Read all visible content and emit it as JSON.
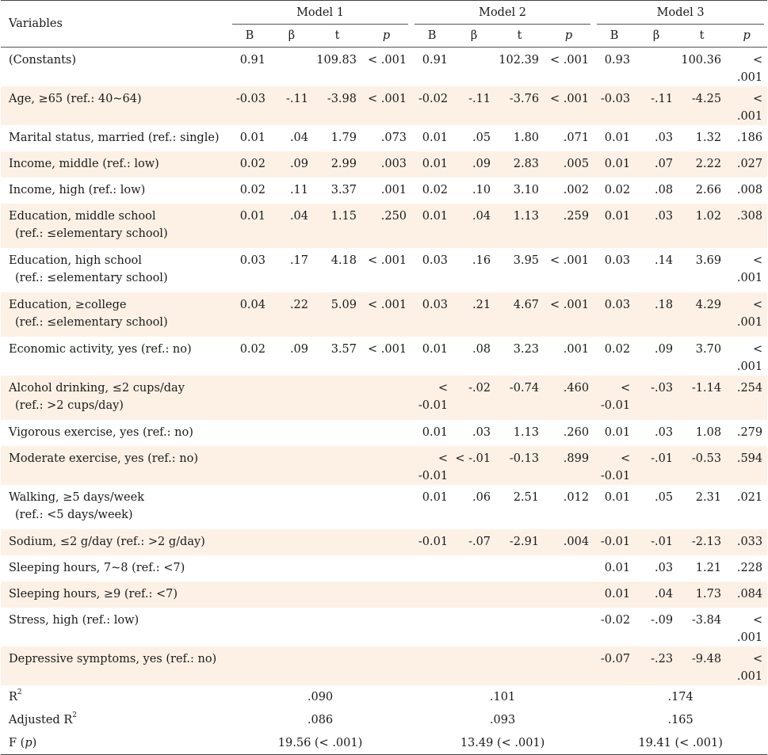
{
  "header": {
    "variables": "Variables",
    "models": [
      "Model 1",
      "Model 2",
      "Model 3"
    ],
    "subcols": [
      "B",
      "β",
      "t",
      "p"
    ]
  },
  "rows": [
    {
      "label": [
        "(Constants)"
      ],
      "shade": false,
      "m1": [
        "0.91",
        "",
        "109.83",
        "< .001"
      ],
      "m2": [
        "0.91",
        "",
        "102.39",
        "< .001"
      ],
      "m3": [
        "0.93",
        "",
        "100.36",
        "< .001"
      ]
    },
    {
      "label": [
        "Age, ≥65 (ref.: 40~64)"
      ],
      "shade": true,
      "m1": [
        "-0.03",
        "-.11",
        "-3.98",
        "< .001"
      ],
      "m2": [
        "-0.02",
        "-.11",
        "-3.76",
        "< .001"
      ],
      "m3": [
        "-0.03",
        "-.11",
        "-4.25",
        "< .001"
      ]
    },
    {
      "label": [
        "Marital status, married (ref.: single)"
      ],
      "shade": false,
      "m1": [
        "0.01",
        ".04",
        "1.79",
        ".073"
      ],
      "m2": [
        "0.01",
        ".05",
        "1.80",
        ".071"
      ],
      "m3": [
        "0.01",
        ".03",
        "1.32",
        ".186"
      ]
    },
    {
      "label": [
        "Income, middle (ref.: low)"
      ],
      "shade": true,
      "m1": [
        "0.02",
        ".09",
        "2.99",
        ".003"
      ],
      "m2": [
        "0.01",
        ".09",
        "2.83",
        ".005"
      ],
      "m3": [
        "0.01",
        ".07",
        "2.22",
        ".027"
      ]
    },
    {
      "label": [
        "Income, high (ref.: low)"
      ],
      "shade": false,
      "m1": [
        "0.02",
        ".11",
        "3.37",
        ".001"
      ],
      "m2": [
        "0.02",
        ".10",
        "3.10",
        ".002"
      ],
      "m3": [
        "0.02",
        ".08",
        "2.66",
        ".008"
      ]
    },
    {
      "label": [
        "Education, middle school",
        "(ref.: ≤elementary school)"
      ],
      "shade": true,
      "m1": [
        "0.01",
        ".04",
        "1.15",
        ".250"
      ],
      "m2": [
        "0.01",
        ".04",
        "1.13",
        ".259"
      ],
      "m3": [
        "0.01",
        ".03",
        "1.02",
        ".308"
      ]
    },
    {
      "label": [
        "Education, high school",
        "(ref.: ≤elementary school)"
      ],
      "shade": false,
      "m1": [
        "0.03",
        ".17",
        "4.18",
        "< .001"
      ],
      "m2": [
        "0.03",
        ".16",
        "3.95",
        "< .001"
      ],
      "m3": [
        "0.03",
        ".14",
        "3.69",
        "< .001"
      ]
    },
    {
      "label": [
        "Education, ≥college",
        "(ref.: ≤elementary school)"
      ],
      "shade": true,
      "m1": [
        "0.04",
        ".22",
        "5.09",
        "< .001"
      ],
      "m2": [
        "0.03",
        ".21",
        "4.67",
        "< .001"
      ],
      "m3": [
        "0.03",
        ".18",
        "4.29",
        "< .001"
      ]
    },
    {
      "label": [
        "Economic activity, yes (ref.: no)"
      ],
      "shade": false,
      "m1": [
        "0.02",
        ".09",
        "3.57",
        "< .001"
      ],
      "m2": [
        "0.01",
        ".08",
        "3.23",
        ".001"
      ],
      "m3": [
        "0.02",
        ".09",
        "3.70",
        "< .001"
      ]
    },
    {
      "label": [
        "Alcohol drinking, ≤2 cups/day",
        "(ref.: >2 cups/day)"
      ],
      "shade": true,
      "m1": [
        "",
        "",
        "",
        ""
      ],
      "m2": [
        "< -0.01",
        "-.02",
        "-0.74",
        ".460"
      ],
      "m3": [
        "< -0.01",
        "-.03",
        "-1.14",
        ".254"
      ]
    },
    {
      "label": [
        "Vigorous exercise, yes (ref.: no)"
      ],
      "shade": false,
      "m1": [
        "",
        "",
        "",
        ""
      ],
      "m2": [
        "0.01",
        ".03",
        "1.13",
        ".260"
      ],
      "m3": [
        "0.01",
        ".03",
        "1.08",
        ".279"
      ]
    },
    {
      "label": [
        "Moderate exercise, yes (ref.: no)"
      ],
      "shade": true,
      "m1": [
        "",
        "",
        "",
        ""
      ],
      "m2": [
        "< -0.01",
        "< -.01",
        "-0.13",
        ".899"
      ],
      "m3": [
        "< -0.01",
        "-.01",
        "-0.53",
        ".594"
      ]
    },
    {
      "label": [
        "Walking, ≥5 days/week",
        "(ref.: <5 days/week)"
      ],
      "shade": false,
      "m1": [
        "",
        "",
        "",
        ""
      ],
      "m2": [
        "0.01",
        ".06",
        "2.51",
        ".012"
      ],
      "m3": [
        "0.01",
        ".05",
        "2.31",
        ".021"
      ]
    },
    {
      "label": [
        "Sodium, ≤2 g/day (ref.: >2 g/day)"
      ],
      "shade": true,
      "m1": [
        "",
        "",
        "",
        ""
      ],
      "m2": [
        "-0.01",
        "-.07",
        "-2.91",
        ".004"
      ],
      "m3": [
        "-0.01",
        "-.01",
        "-2.13",
        ".033"
      ]
    },
    {
      "label": [
        "Sleeping hours, 7~8 (ref.: <7)"
      ],
      "shade": false,
      "m1": [
        "",
        "",
        "",
        ""
      ],
      "m2": [
        "",
        "",
        "",
        ""
      ],
      "m3": [
        "0.01",
        ".03",
        "1.21",
        ".228"
      ]
    },
    {
      "label": [
        "Sleeping hours, ≥9 (ref.: <7)"
      ],
      "shade": true,
      "m1": [
        "",
        "",
        "",
        ""
      ],
      "m2": [
        "",
        "",
        "",
        ""
      ],
      "m3": [
        "0.01",
        ".04",
        "1.73",
        ".084"
      ]
    },
    {
      "label": [
        "Stress, high (ref.: low)"
      ],
      "shade": false,
      "m1": [
        "",
        "",
        "",
        ""
      ],
      "m2": [
        "",
        "",
        "",
        ""
      ],
      "m3": [
        "-0.02",
        "-.09",
        "-3.84",
        "< .001"
      ]
    },
    {
      "label": [
        "Depressive symptoms, yes (ref.: no)"
      ],
      "shade": true,
      "m1": [
        "",
        "",
        "",
        ""
      ],
      "m2": [
        "",
        "",
        "",
        ""
      ],
      "m3": [
        "-0.07",
        "-.23",
        "-9.48",
        "< .001"
      ]
    }
  ],
  "footer": {
    "r2": {
      "label": "R",
      "sup": "2",
      "values": [
        ".090",
        ".101",
        ".174"
      ]
    },
    "adj_r2": {
      "label": "Adjusted R",
      "sup": "2",
      "values": [
        ".086",
        ".093",
        ".165"
      ]
    },
    "f": {
      "label_pre": "F (",
      "label_p": "p",
      "label_post": ")",
      "values": [
        "19.56 (< .001)",
        "13.49 (< .001)",
        "19.41 (< .001)"
      ]
    }
  },
  "colors": {
    "row_shade": "#fdf1e6",
    "rule": "#444444"
  }
}
